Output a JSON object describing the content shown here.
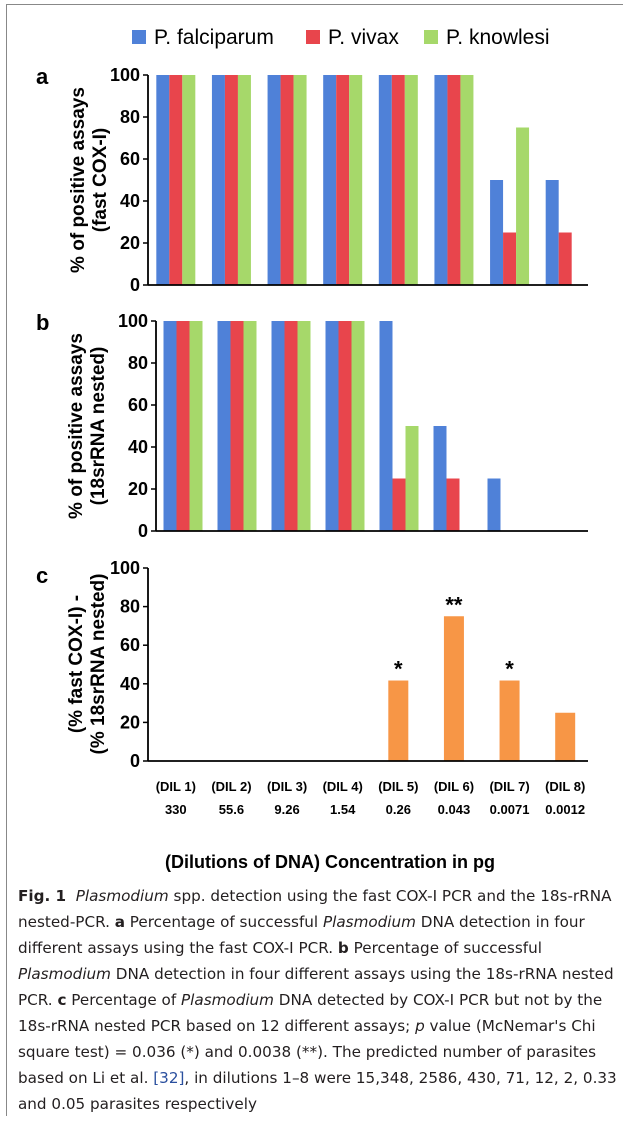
{
  "chart_data": [
    {
      "type": "bar",
      "panel": "a",
      "ylabel": [
        "% of positive assays",
        "(fast COX-I)"
      ],
      "ylim": [
        0,
        100
      ],
      "yticks": [
        0,
        20,
        40,
        60,
        80,
        100
      ],
      "categories": [
        "(DIL 1)",
        "(DIL 2)",
        "(DIL 3)",
        "(DIL 4)",
        "(DIL 5)",
        "(DIL 6)",
        "(DIL 7)",
        "(DIL 8)"
      ],
      "series": [
        {
          "name": "P. falciparum",
          "color": "#4f81d8",
          "values": [
            100,
            100,
            100,
            100,
            100,
            100,
            50,
            50
          ]
        },
        {
          "name": "P. vivax",
          "color": "#e8454c",
          "values": [
            100,
            100,
            100,
            100,
            100,
            100,
            25,
            25
          ]
        },
        {
          "name": "P. knowlesi",
          "color": "#a6d86a",
          "values": [
            100,
            100,
            100,
            100,
            100,
            100,
            75,
            0
          ]
        }
      ]
    },
    {
      "type": "bar",
      "panel": "b",
      "ylabel": [
        "% of positive assays",
        "(18srRNA nested)"
      ],
      "ylim": [
        0,
        100
      ],
      "yticks": [
        0,
        20,
        40,
        60,
        80,
        100
      ],
      "categories": [
        "(DIL 1)",
        "(DIL 2)",
        "(DIL 3)",
        "(DIL 4)",
        "(DIL 5)",
        "(DIL 6)",
        "(DIL 7)",
        "(DIL 8)"
      ],
      "series": [
        {
          "name": "P. falciparum",
          "color": "#4f81d8",
          "values": [
            100,
            100,
            100,
            100,
            100,
            50,
            25,
            0
          ]
        },
        {
          "name": "P. vivax",
          "color": "#e8454c",
          "values": [
            100,
            100,
            100,
            100,
            25,
            25,
            0,
            0
          ]
        },
        {
          "name": "P. knowlesi",
          "color": "#a6d86a",
          "values": [
            100,
            100,
            100,
            100,
            50,
            0,
            0,
            0
          ]
        }
      ]
    },
    {
      "type": "bar",
      "panel": "c",
      "ylabel": [
        "(% fast COX-I) -",
        "(% 18srRNA nested)"
      ],
      "ylim": [
        0,
        100
      ],
      "yticks": [
        0,
        20,
        40,
        60,
        80,
        100
      ],
      "categories": [
        "(DIL 1)",
        "(DIL 2)",
        "(DIL 3)",
        "(DIL 4)",
        "(DIL 5)",
        "(DIL 6)",
        "(DIL 7)",
        "(DIL 8)"
      ],
      "concentrations": [
        "330",
        "55.6",
        "9.26",
        "1.54",
        "0.26",
        "0.043",
        "0.0071",
        "0.0012"
      ],
      "xlabel": "(Dilutions of DNA) Concentration in pg",
      "series": [
        {
          "name": "",
          "color": "#f79646",
          "values": [
            0,
            0,
            0,
            0,
            41.7,
            75,
            41.7,
            25
          ]
        }
      ],
      "annotations": [
        "",
        "",
        "",
        "",
        "*",
        "**",
        "*",
        ""
      ]
    }
  ],
  "legend": {
    "items": [
      {
        "name": "P. falciparum",
        "color": "#4f81d8"
      },
      {
        "name": "P. vivax",
        "color": "#e8454c"
      },
      {
        "name": "P. knowlesi",
        "color": "#a6d86a"
      }
    ]
  },
  "caption": {
    "fig_label": "Fig. 1",
    "part1_italic": "Plasmodium",
    "part1_rest": " spp. detection using the fast COX-I PCR and the 18s-rRNA nested-PCR. ",
    "a_label": "a",
    "a_text1": " Percentage of successful ",
    "a_italic": "Plasmodium",
    "a_text2": " DNA detection in four different assays using the fast COX-I PCR. ",
    "b_label": "b",
    "b_text1": " Percentage of successful ",
    "b_italic": "Plasmodium",
    "b_text2": " DNA detection in four different assays using the 18s-rRNA nested PCR. ",
    "c_label": "c",
    "c_text1": " Percentage of ",
    "c_italic": "Plasmodium",
    "c_text2": " DNA detected by COX-I PCR but not by the 18s-rRNA nested PCR based on 12 different assays; ",
    "p_italic": "p",
    "c_text3": " value (McNemar's Chi square test) = 0.036 (*) and 0.0038 (**). The predicted number of parasites based on Li et al. ",
    "ref": "[32]",
    "c_text4": ", in dilutions 1–8 were 15,348, 2586, 430, 71, 12, 2, 0.33 and 0.05 parasites respectively"
  }
}
